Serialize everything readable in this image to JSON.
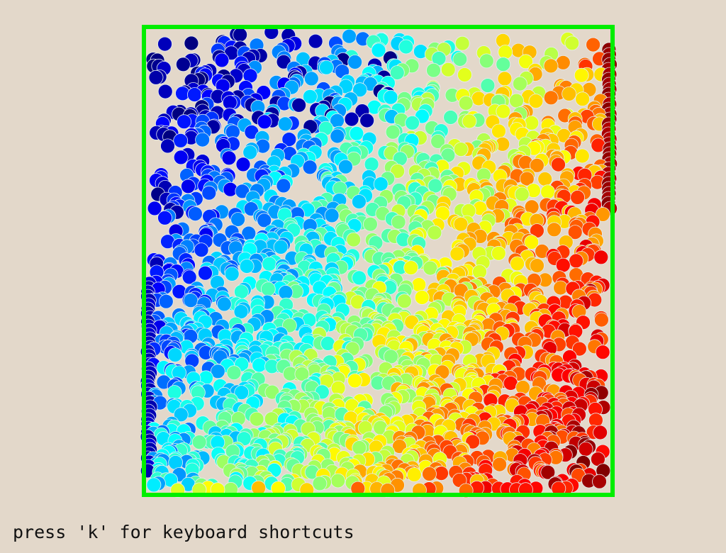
{
  "hint_text": "press 'k' for keyboard shortcuts",
  "colors": {
    "background": "#e3d8ca",
    "container_border": "#00ee00",
    "particle_outline": "#e6eef0",
    "colormap": "jet"
  },
  "simulation": {
    "description_kind": "particle-heat-diffusion",
    "particle_count": 2200,
    "cold_side": "left",
    "hot_side": "right",
    "seed": 7
  }
}
